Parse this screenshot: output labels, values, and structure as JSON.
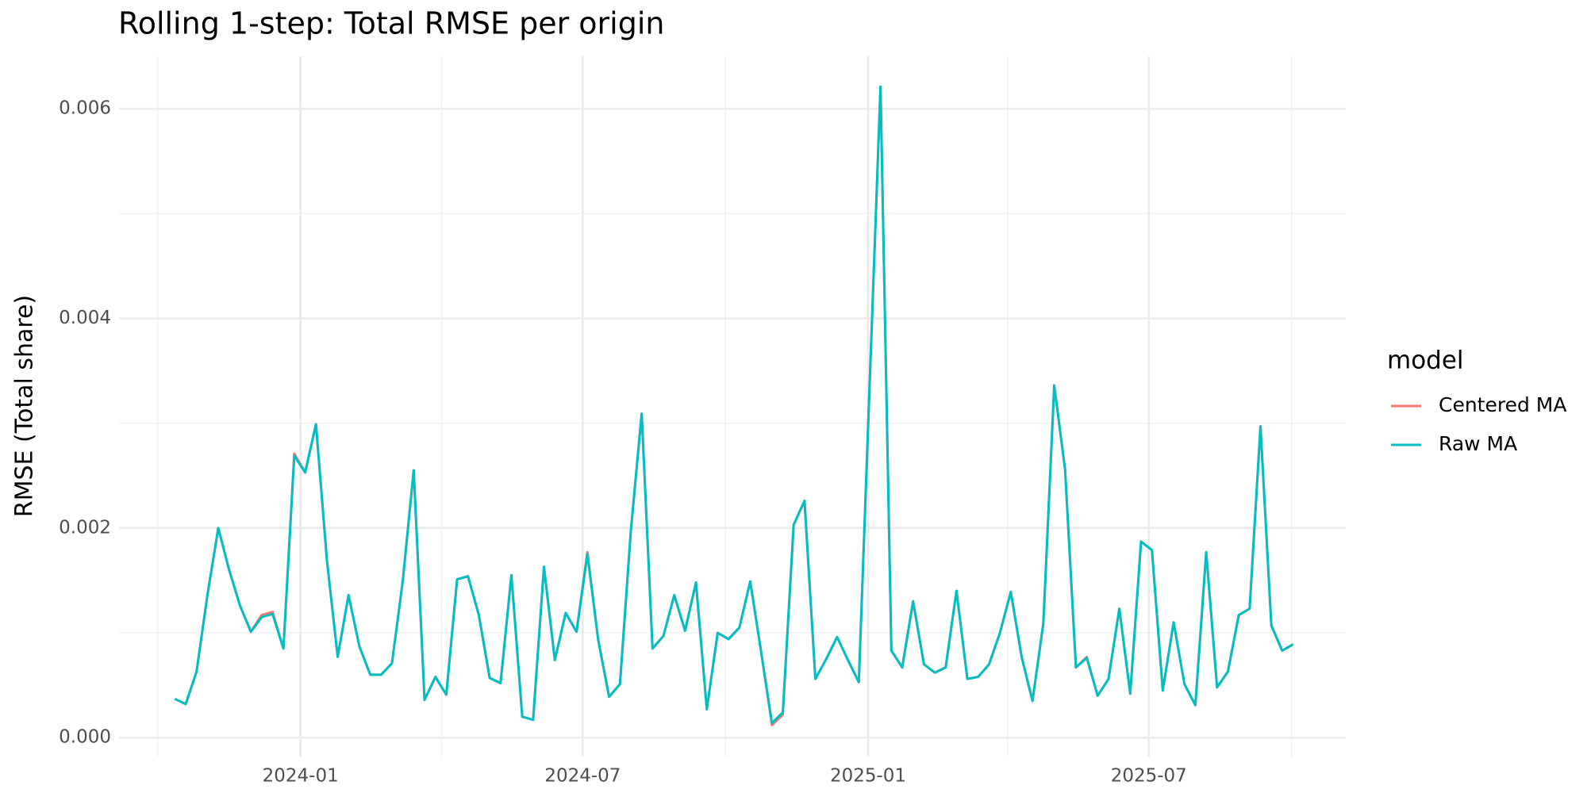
{
  "chart_data": {
    "type": "line",
    "title": "Rolling 1-step: Total RMSE per origin",
    "y_label": "RMSE (Total share)",
    "legend_title": "model",
    "legend_position": "right",
    "grid": true,
    "x": [
      "2023-10-12",
      "2023-10-19",
      "2023-10-26",
      "2023-11-02",
      "2023-11-09",
      "2023-11-16",
      "2023-11-23",
      "2023-11-30",
      "2023-12-07",
      "2023-12-14",
      "2023-12-21",
      "2023-12-28",
      "2024-01-04",
      "2024-01-11",
      "2024-01-18",
      "2024-01-25",
      "2024-02-01",
      "2024-02-08",
      "2024-02-15",
      "2024-02-22",
      "2024-02-29",
      "2024-03-07",
      "2024-03-14",
      "2024-03-21",
      "2024-03-28",
      "2024-04-04",
      "2024-04-11",
      "2024-04-18",
      "2024-04-25",
      "2024-05-02",
      "2024-05-09",
      "2024-05-16",
      "2024-05-23",
      "2024-05-30",
      "2024-06-06",
      "2024-06-13",
      "2024-06-20",
      "2024-06-27",
      "2024-07-04",
      "2024-07-11",
      "2024-07-18",
      "2024-07-25",
      "2024-08-01",
      "2024-08-08",
      "2024-08-15",
      "2024-08-22",
      "2024-08-29",
      "2024-09-05",
      "2024-09-12",
      "2024-09-19",
      "2024-09-26",
      "2024-10-03",
      "2024-10-10",
      "2024-10-17",
      "2024-10-24",
      "2024-10-31",
      "2024-11-07",
      "2024-11-14",
      "2024-11-21",
      "2024-11-28",
      "2024-12-05",
      "2024-12-12",
      "2024-12-19",
      "2024-12-26",
      "2025-01-09",
      "2025-01-16",
      "2025-01-23",
      "2025-01-30",
      "2025-02-06",
      "2025-02-13",
      "2025-02-20",
      "2025-02-27",
      "2025-03-06",
      "2025-03-13",
      "2025-03-20",
      "2025-03-27",
      "2025-04-03",
      "2025-04-10",
      "2025-04-17",
      "2025-04-24",
      "2025-05-01",
      "2025-05-08",
      "2025-05-15",
      "2025-05-22",
      "2025-05-29",
      "2025-06-05",
      "2025-06-12",
      "2025-06-19",
      "2025-06-26",
      "2025-07-03",
      "2025-07-10",
      "2025-07-17",
      "2025-07-24",
      "2025-07-31",
      "2025-08-07",
      "2025-08-14",
      "2025-08-21",
      "2025-08-28",
      "2025-09-04",
      "2025-09-11",
      "2025-09-18",
      "2025-09-25",
      "2025-10-02"
    ],
    "series": [
      {
        "name": "Centered MA",
        "color": "#F8766D",
        "values": [
          0.00037,
          0.00032,
          0.00063,
          0.00136,
          0.002,
          0.0016,
          0.00126,
          0.00101,
          0.00117,
          0.0012,
          0.00085,
          0.00271,
          0.00253,
          0.00299,
          0.0017,
          0.00077,
          0.00136,
          0.00087,
          0.0006,
          0.0006,
          0.00071,
          0.0015,
          0.00255,
          0.00036,
          0.00058,
          0.00041,
          0.00151,
          0.00154,
          0.00117,
          0.00057,
          0.00052,
          0.00155,
          0.0002,
          0.00017,
          0.00163,
          0.00074,
          0.00119,
          0.00101,
          0.00177,
          0.00093,
          0.00039,
          0.00051,
          0.00197,
          0.00309,
          0.00085,
          0.00097,
          0.00136,
          0.00102,
          0.00148,
          0.00027,
          0.001,
          0.00094,
          0.00105,
          0.00149,
          0.00082,
          0.00012,
          0.00022,
          0.00203,
          0.00226,
          0.00056,
          0.00075,
          0.00096,
          0.00074,
          0.00053,
          0.00621,
          0.00083,
          0.00067,
          0.0013,
          0.0007,
          0.00062,
          0.00067,
          0.0014,
          0.00056,
          0.00058,
          0.0007,
          0.001,
          0.00139,
          0.00077,
          0.00035,
          0.00109,
          0.00336,
          0.00256,
          0.00067,
          0.00077,
          0.0004,
          0.00056,
          0.00123,
          0.00042,
          0.00187,
          0.00179,
          0.00045,
          0.0011,
          0.00051,
          0.00031,
          0.00177,
          0.00048,
          0.00063,
          0.00117,
          0.00123,
          0.00297,
          0.00107,
          0.00083,
          0.00089
        ]
      },
      {
        "name": "Raw MA",
        "color": "#00BFC4",
        "values": [
          0.00037,
          0.00032,
          0.00063,
          0.00136,
          0.002,
          0.0016,
          0.00126,
          0.00101,
          0.00115,
          0.00118,
          0.00085,
          0.00269,
          0.00253,
          0.00299,
          0.0017,
          0.00077,
          0.00136,
          0.00087,
          0.0006,
          0.0006,
          0.00071,
          0.0015,
          0.00255,
          0.00036,
          0.00058,
          0.00041,
          0.00151,
          0.00154,
          0.00117,
          0.00057,
          0.00052,
          0.00155,
          0.0002,
          0.00017,
          0.00163,
          0.00074,
          0.00119,
          0.00101,
          0.00175,
          0.00093,
          0.00039,
          0.00051,
          0.00197,
          0.00309,
          0.00085,
          0.00097,
          0.00136,
          0.00102,
          0.00148,
          0.00027,
          0.001,
          0.00094,
          0.00105,
          0.00149,
          0.00082,
          0.00014,
          0.00024,
          0.00203,
          0.00226,
          0.00056,
          0.00075,
          0.00096,
          0.00074,
          0.00053,
          0.00621,
          0.00083,
          0.00067,
          0.0013,
          0.0007,
          0.00062,
          0.00067,
          0.0014,
          0.00056,
          0.00058,
          0.0007,
          0.001,
          0.00139,
          0.00077,
          0.00035,
          0.00109,
          0.00336,
          0.00256,
          0.00067,
          0.00076,
          0.0004,
          0.00056,
          0.00123,
          0.00042,
          0.00187,
          0.00179,
          0.00045,
          0.0011,
          0.00051,
          0.00031,
          0.00177,
          0.00048,
          0.00063,
          0.00117,
          0.00123,
          0.00297,
          0.00107,
          0.00083,
          0.00089
        ]
      }
    ],
    "xlim": [
      "2023-09-06",
      "2025-11-05"
    ],
    "xticks": [
      {
        "value": "2024-01-01",
        "label": "2024-01"
      },
      {
        "value": "2024-07-01",
        "label": "2024-07"
      },
      {
        "value": "2025-01-01",
        "label": "2025-01"
      },
      {
        "value": "2025-07-01",
        "label": "2025-07"
      }
    ],
    "x_minor_ticks": [
      "2023-10-01",
      "2024-04-01",
      "2024-10-01",
      "2025-04-01",
      "2025-10-01"
    ],
    "ylim": [
      -0.00018,
      0.0065
    ],
    "yticks": [
      {
        "value": 0,
        "label": "0.000"
      },
      {
        "value": 0.002,
        "label": "0.002"
      },
      {
        "value": 0.004,
        "label": "0.004"
      },
      {
        "value": 0.006,
        "label": "0.006"
      }
    ],
    "y_minor_ticks": [
      0.001,
      0.003,
      0.005
    ]
  }
}
